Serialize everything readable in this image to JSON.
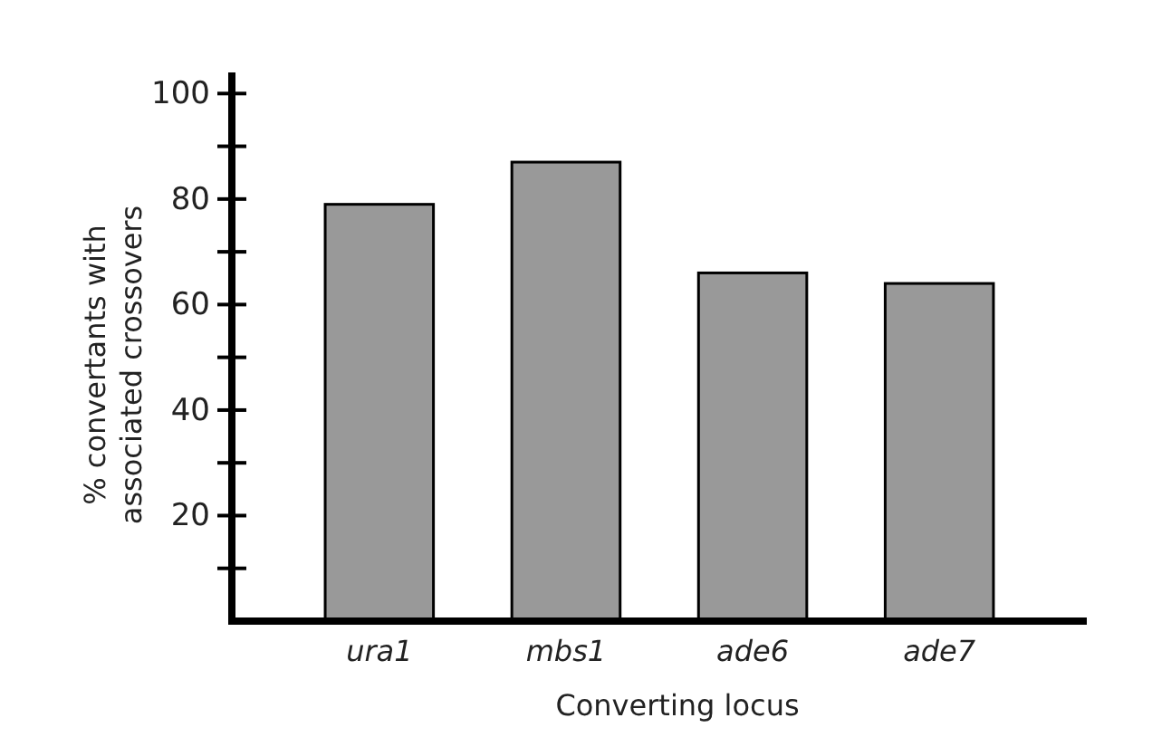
{
  "chart_data": {
    "type": "bar",
    "xlabel": "Converting locus",
    "ylabel": "% convertants with\nassociated crossovers",
    "categories": [
      "ura1",
      "mbs1",
      "ade6",
      "ade7"
    ],
    "values": [
      79,
      87,
      66,
      64
    ],
    "color": "#999999",
    "ylim": [
      0,
      104
    ],
    "yticks": [
      {
        "value": 10,
        "label": null
      },
      20,
      {
        "value": 30,
        "label": null
      },
      40,
      {
        "value": 50,
        "label": null
      },
      60,
      {
        "value": 70,
        "label": null
      },
      80,
      {
        "value": 90,
        "label": null
      },
      100
    ],
    "grid": false
  }
}
